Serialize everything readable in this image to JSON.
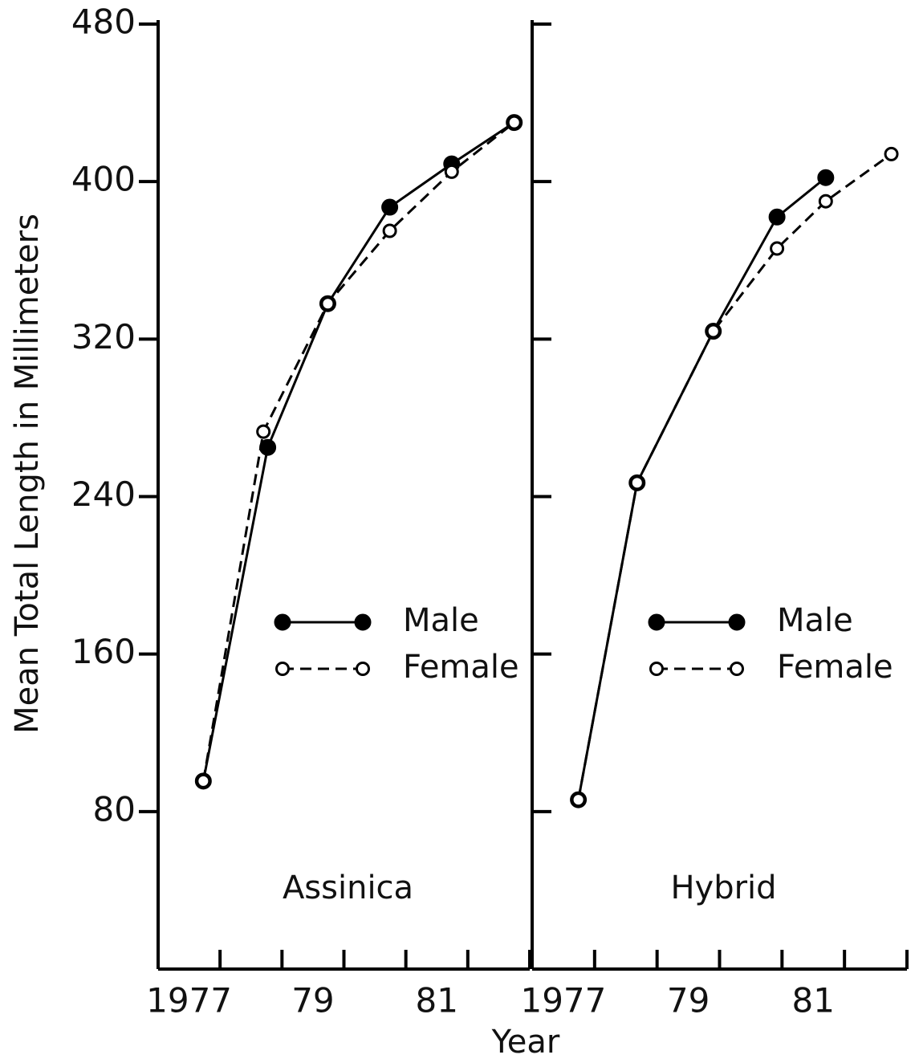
{
  "chart_data": [
    {
      "type": "line",
      "title": "Assinica",
      "y_label": "Mean Total Length in Millimeters",
      "x_label": "Year",
      "xlim": [
        1977,
        1983
      ],
      "xticks": [
        {
          "value": 1977.5,
          "label": "1977"
        },
        {
          "value": 1979.5,
          "label": "79"
        },
        {
          "value": 1981.5,
          "label": "81"
        }
      ],
      "xminor_ticks": [
        1978,
        1979,
        1980,
        1981,
        1982
      ],
      "ylim": [
        0,
        480
      ],
      "yticks": [
        80,
        160,
        240,
        320,
        400,
        480
      ],
      "legend": "center right",
      "series": [
        {
          "name": "Male",
          "color": "#000",
          "line_style": "solid",
          "marker": "filled",
          "x": [
            1977.73,
            1978.77,
            1979.74,
            1980.74,
            1981.74,
            1982.75
          ],
          "values": [
            95.5,
            265,
            338,
            387,
            409,
            430
          ]
        },
        {
          "name": "Female",
          "color": "#000",
          "line_style": "dashed",
          "marker": "open",
          "x": [
            1977.73,
            1978.7,
            1979.74,
            1980.74,
            1981.74,
            1982.75
          ],
          "values": [
            95.5,
            273,
            338,
            375,
            405,
            430
          ]
        }
      ]
    },
    {
      "type": "line",
      "title": "Hybrid",
      "xlim": [
        1977,
        1983
      ],
      "xticks": [
        {
          "value": 1977.5,
          "label": "1977"
        },
        {
          "value": 1979.5,
          "label": "79"
        },
        {
          "value": 1981.5,
          "label": "81"
        }
      ],
      "xminor_ticks": [
        1978,
        1979,
        1980,
        1981,
        1982
      ],
      "ylim": [
        0,
        480
      ],
      "yticks": [
        80,
        160,
        240,
        320,
        400,
        480
      ],
      "legend": "center right",
      "series": [
        {
          "name": "Male",
          "color": "#000",
          "line_style": "solid",
          "marker": "filled",
          "x": [
            1977.74,
            1978.68,
            1979.9,
            1980.92,
            1981.7
          ],
          "values": [
            86,
            247,
            324,
            382,
            402
          ]
        },
        {
          "name": "Female",
          "color": "#000",
          "line_style": "dashed",
          "marker": "open",
          "x": [
            1977.74,
            1978.68,
            1979.9,
            1980.92,
            1981.7,
            1982.75
          ],
          "values": [
            86,
            247,
            324,
            366,
            390,
            414
          ]
        }
      ]
    }
  ]
}
